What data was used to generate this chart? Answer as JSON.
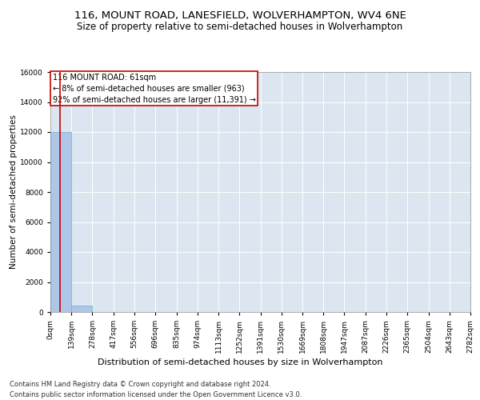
{
  "title_line1": "116, MOUNT ROAD, LANESFIELD, WOLVERHAMPTON, WV4 6NE",
  "title_line2": "Size of property relative to semi-detached houses in Wolverhampton",
  "xlabel": "Distribution of semi-detached houses by size in Wolverhampton",
  "ylabel": "Number of semi-detached properties",
  "footer_line1": "Contains HM Land Registry data © Crown copyright and database right 2024.",
  "footer_line2": "Contains public sector information licensed under the Open Government Licence v3.0.",
  "bin_edges": [
    0,
    139,
    278,
    417,
    556,
    696,
    835,
    974,
    1113,
    1252,
    1391,
    1530,
    1669,
    1808,
    1947,
    2087,
    2226,
    2365,
    2504,
    2643,
    2782
  ],
  "bar_heights": [
    12000,
    450,
    5,
    2,
    1,
    1,
    1,
    1,
    1,
    1,
    0,
    0,
    0,
    0,
    0,
    0,
    0,
    0,
    0,
    0
  ],
  "bar_color": "#aec6e8",
  "bar_edgecolor": "#6aaed6",
  "property_size": 61,
  "annotation_text_line1": "116 MOUNT ROAD: 61sqm",
  "annotation_text_line2": "← 8% of semi-detached houses are smaller (963)",
  "annotation_text_line3": "92% of semi-detached houses are larger (11,391) →",
  "vline_color": "#cc0000",
  "annotation_box_color": "#cc0000",
  "ylim": [
    0,
    16000
  ],
  "yticks": [
    0,
    2000,
    4000,
    6000,
    8000,
    10000,
    12000,
    14000,
    16000
  ],
  "xtick_labels": [
    "0sqm",
    "139sqm",
    "278sqm",
    "417sqm",
    "556sqm",
    "696sqm",
    "835sqm",
    "974sqm",
    "1113sqm",
    "1252sqm",
    "1391sqm",
    "1530sqm",
    "1669sqm",
    "1808sqm",
    "1947sqm",
    "2087sqm",
    "2226sqm",
    "2365sqm",
    "2504sqm",
    "2643sqm",
    "2782sqm"
  ],
  "bg_color": "#dce6f1",
  "fig_bg_color": "#ffffff",
  "title1_fontsize": 9.5,
  "title2_fontsize": 8.5,
  "ylabel_fontsize": 7.5,
  "xlabel_fontsize": 8,
  "tick_fontsize": 6.5,
  "annotation_fontsize": 7,
  "footer_fontsize": 6
}
